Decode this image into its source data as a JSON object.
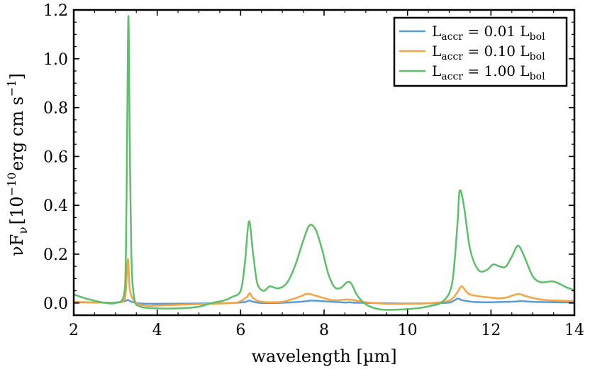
{
  "chart_data": {
    "type": "line",
    "title": "",
    "xlabel": "wavelength [µm]",
    "ylabel": {
      "base": "νF",
      "sub": "ν",
      "open": "[10",
      "exp": "−10",
      "units": "erg cm s",
      "units_exp": "−1",
      "close": "]"
    },
    "xlim": [
      2,
      14
    ],
    "ylim": [
      -0.05,
      1.2
    ],
    "xticks": [
      2,
      4,
      6,
      8,
      10,
      12,
      14
    ],
    "xtick_labels": [
      "2",
      "4",
      "6",
      "8",
      "10",
      "12",
      "14"
    ],
    "yticks": [
      0.0,
      0.2,
      0.4,
      0.6,
      0.8,
      1.0,
      1.2
    ],
    "ytick_labels": [
      "0.0",
      "0.2",
      "0.4",
      "0.6",
      "0.8",
      "1.0",
      "1.2"
    ],
    "legend_position": "top-right",
    "series": [
      {
        "name": "L_accr = 0.01 L_bol",
        "legend": {
          "l": "L",
          "sub1": "accr",
          "eq": " = 0.01 L",
          "sub2": "bol"
        },
        "color": "#5b9bd5",
        "x": [
          2.0,
          2.5,
          3.0,
          3.2,
          3.3,
          3.4,
          3.6,
          4.0,
          5.0,
          5.8,
          6.1,
          6.2,
          6.3,
          6.5,
          7.0,
          7.5,
          7.7,
          8.0,
          8.5,
          8.6,
          8.8,
          9.5,
          10.0,
          10.5,
          11.0,
          11.2,
          11.3,
          11.6,
          12.0,
          12.2,
          12.6,
          12.7,
          13.0,
          13.5,
          14.0
        ],
        "y": [
          0.003,
          0.002,
          0.002,
          0.006,
          0.012,
          0.004,
          -0.002,
          -0.003,
          -0.002,
          0.0,
          0.004,
          0.01,
          0.005,
          0.0,
          0.001,
          0.006,
          0.01,
          0.007,
          0.002,
          0.003,
          0.001,
          -0.001,
          -0.002,
          -0.001,
          0.002,
          0.018,
          0.012,
          0.004,
          0.003,
          0.004,
          0.006,
          0.008,
          0.005,
          0.003,
          0.002
        ]
      },
      {
        "name": "L_accr = 0.10 L_bol",
        "legend": {
          "l": "L",
          "sub1": "accr",
          "eq": " = 0.10 L",
          "sub2": "bol"
        },
        "color": "#f5a442",
        "x": [
          2.0,
          2.5,
          3.0,
          3.2,
          3.25,
          3.3,
          3.35,
          3.5,
          3.8,
          4.0,
          5.0,
          5.8,
          6.0,
          6.15,
          6.22,
          6.3,
          6.5,
          7.0,
          7.4,
          7.6,
          7.8,
          8.2,
          8.6,
          9.0,
          9.5,
          10.0,
          10.5,
          11.0,
          11.2,
          11.3,
          11.5,
          12.0,
          12.3,
          12.6,
          12.7,
          12.9,
          13.3,
          14.0
        ],
        "y": [
          0.005,
          0.002,
          0.001,
          0.01,
          0.05,
          0.18,
          0.05,
          0.0,
          -0.012,
          -0.01,
          -0.005,
          0.0,
          0.008,
          0.025,
          0.04,
          0.02,
          0.005,
          0.005,
          0.025,
          0.038,
          0.03,
          0.012,
          0.014,
          0.003,
          -0.003,
          -0.003,
          -0.001,
          0.01,
          0.045,
          0.068,
          0.035,
          0.022,
          0.02,
          0.035,
          0.036,
          0.025,
          0.012,
          0.008
        ]
      },
      {
        "name": "L_accr = 1.00 L_bol",
        "legend": {
          "l": "L",
          "sub1": "accr",
          "eq": " = 1.00 L",
          "sub2": "bol"
        },
        "color": "#5cbf6a",
        "x": [
          2.0,
          2.3,
          2.7,
          3.0,
          3.2,
          3.25,
          3.28,
          3.31,
          3.34,
          3.38,
          3.45,
          3.6,
          4.0,
          4.5,
          5.0,
          5.3,
          5.6,
          5.8,
          6.0,
          6.1,
          6.2,
          6.3,
          6.4,
          6.55,
          6.7,
          6.9,
          7.1,
          7.3,
          7.5,
          7.65,
          7.8,
          7.95,
          8.1,
          8.25,
          8.4,
          8.55,
          8.65,
          8.8,
          9.0,
          9.3,
          9.6,
          10.0,
          10.3,
          10.6,
          10.8,
          11.0,
          11.1,
          11.2,
          11.25,
          11.35,
          11.5,
          11.7,
          11.9,
          12.05,
          12.2,
          12.35,
          12.5,
          12.65,
          12.8,
          13.0,
          13.2,
          13.5,
          13.8,
          14.0
        ],
        "y": [
          0.035,
          0.018,
          0.002,
          0.0,
          0.03,
          0.2,
          0.7,
          1.175,
          0.7,
          0.2,
          0.02,
          -0.015,
          -0.022,
          -0.022,
          -0.015,
          0.0,
          0.01,
          0.025,
          0.05,
          0.16,
          0.335,
          0.2,
          0.08,
          0.05,
          0.068,
          0.06,
          0.08,
          0.15,
          0.255,
          0.318,
          0.3,
          0.22,
          0.12,
          0.065,
          0.062,
          0.085,
          0.08,
          0.03,
          -0.005,
          -0.025,
          -0.028,
          -0.025,
          -0.02,
          -0.01,
          0.0,
          0.04,
          0.12,
          0.33,
          0.46,
          0.4,
          0.22,
          0.135,
          0.135,
          0.158,
          0.15,
          0.148,
          0.19,
          0.235,
          0.19,
          0.11,
          0.085,
          0.088,
          0.065,
          0.052
        ]
      }
    ]
  }
}
